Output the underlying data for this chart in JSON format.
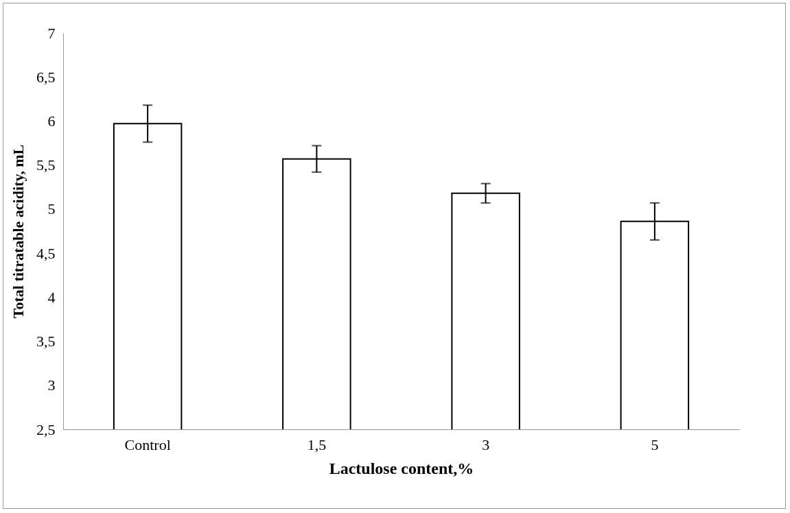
{
  "chart_data": {
    "type": "bar",
    "xlabel": "Lactulose content,%",
    "ylabel": "Total titratable acidity, mL",
    "categories": [
      "Control",
      "1,5",
      "3",
      "5"
    ],
    "values": [
      5.97,
      5.57,
      5.18,
      4.86
    ],
    "errors": [
      0.21,
      0.15,
      0.11,
      0.21
    ],
    "colors": [
      "#ffffff",
      "#ffffff",
      "#ffffff",
      "#ffffff"
    ],
    "ylim": [
      2.5,
      7
    ],
    "yticks": [
      {
        "value": 2.5,
        "label": "2,5"
      },
      3,
      {
        "value": 3.5,
        "label": "3,5"
      },
      4,
      {
        "value": 4.5,
        "label": "4,5"
      },
      5,
      {
        "value": 5.5,
        "label": "5,5"
      },
      6,
      {
        "value": 6.5,
        "label": "6,5"
      },
      7
    ],
    "grid": false
  }
}
